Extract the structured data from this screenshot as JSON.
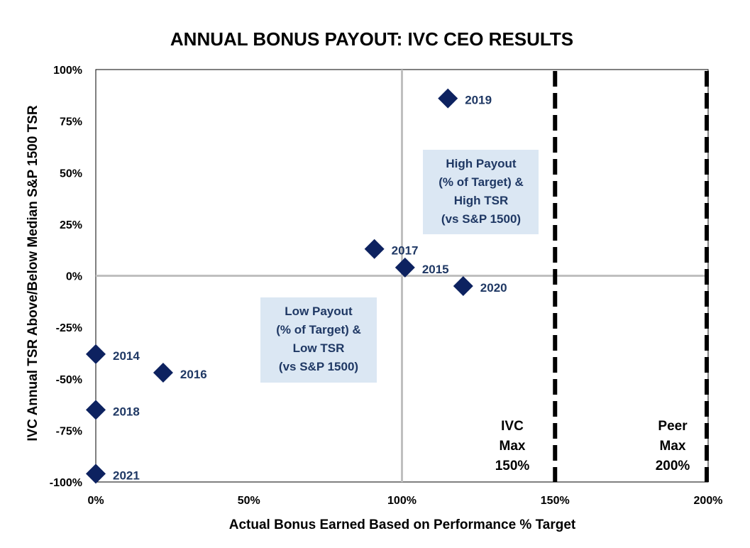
{
  "chart_data": {
    "type": "scatter",
    "title": "ANNUAL BONUS PAYOUT: IVC CEO RESULTS",
    "xlabel": "Actual Bonus Earned Based on Performance % Target",
    "ylabel": "IVC Annual TSR Above/Below Median S&P 1500 TSR",
    "xlim": [
      0,
      200
    ],
    "ylim": [
      -100,
      100
    ],
    "x_ticks": [
      {
        "value": 0,
        "label": "0%"
      },
      {
        "value": 50,
        "label": "50%"
      },
      {
        "value": 100,
        "label": "100%"
      },
      {
        "value": 150,
        "label": "150%"
      },
      {
        "value": 200,
        "label": "200%"
      }
    ],
    "y_ticks": [
      {
        "value": 100,
        "label": "100%"
      },
      {
        "value": 75,
        "label": "75%"
      },
      {
        "value": 50,
        "label": "50%"
      },
      {
        "value": 25,
        "label": "25%"
      },
      {
        "value": 0,
        "label": "0%"
      },
      {
        "value": -25,
        "label": "-25%"
      },
      {
        "value": -50,
        "label": "-50%"
      },
      {
        "value": -75,
        "label": "-75%"
      },
      {
        "value": -100,
        "label": "-100%"
      }
    ],
    "points": [
      {
        "label": "2014",
        "x": 0,
        "y": -38
      },
      {
        "label": "2015",
        "x": 101,
        "y": 4
      },
      {
        "label": "2016",
        "x": 22,
        "y": -47
      },
      {
        "label": "2017",
        "x": 91,
        "y": 13
      },
      {
        "label": "2018",
        "x": 0,
        "y": -65
      },
      {
        "label": "2019",
        "x": 115,
        "y": 86
      },
      {
        "label": "2020",
        "x": 120,
        "y": -5
      },
      {
        "label": "2021",
        "x": 0,
        "y": -96
      }
    ],
    "reference_lines": [
      {
        "x": 150,
        "style": "dashed",
        "lines": [
          "IVC",
          "Max",
          "150%"
        ]
      },
      {
        "x": 200,
        "style": "dashed",
        "lines": [
          "Peer",
          "Max",
          "200%"
        ]
      }
    ],
    "quadrant_lines": {
      "x": 100,
      "y": 0
    },
    "annotations": [
      {
        "id": "high",
        "lines": [
          "High Payout",
          "(% of Target) &",
          "High TSR",
          "(vs S&P 1500)"
        ]
      },
      {
        "id": "low",
        "lines": [
          "Low Payout",
          "(% of Target) &",
          "Low TSR",
          "(vs S&P 1500)"
        ]
      }
    ],
    "colors": {
      "marker": "#0d2260",
      "label": "#1f3864",
      "box": "#dbe7f3",
      "grid": "#bfbfbf"
    }
  }
}
